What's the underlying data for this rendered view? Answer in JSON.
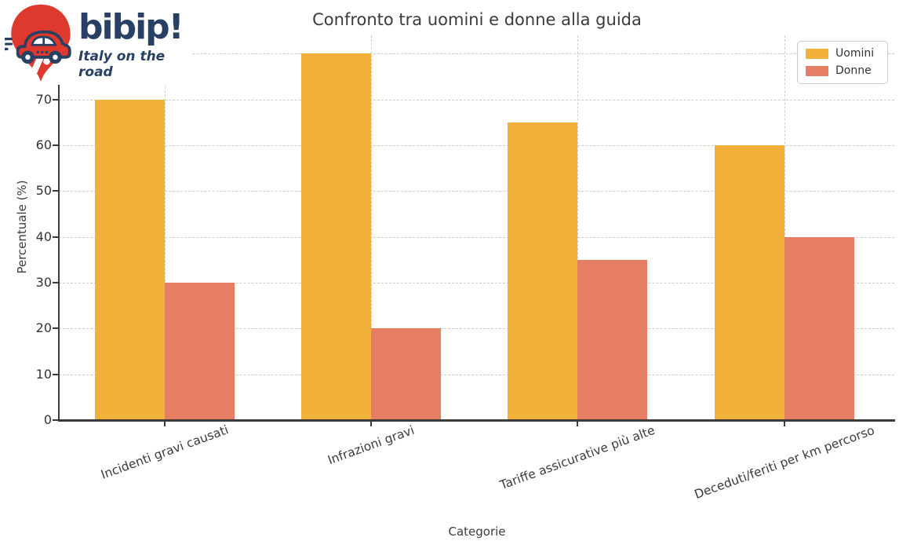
{
  "logo": {
    "brand": "bibip!",
    "tagline": "Italy on the road",
    "pin_color": "#dd392c",
    "navy_color": "#274063"
  },
  "chart_data": {
    "type": "bar",
    "title": "Confronto tra uomini e donne alla guida",
    "xlabel": "Categorie",
    "ylabel": "Percentuale (%)",
    "categories": [
      "Incidenti gravi causati",
      "Infrazioni gravi",
      "Tariffe assicurative più alte",
      "Deceduti/feriti per km percorso"
    ],
    "series": [
      {
        "name": "Uomini",
        "color": "#f2b13a",
        "values": [
          70,
          80,
          65,
          60
        ]
      },
      {
        "name": "Donne",
        "color": "#e57e62",
        "values": [
          30,
          20,
          35,
          40
        ]
      }
    ],
    "ylim": [
      0,
      84
    ],
    "yticks": [
      0,
      10,
      20,
      30,
      40,
      50,
      60,
      70
    ],
    "grid": {
      "style": "dashed",
      "color": "#cdcdcd",
      "horizontal_values": [
        10,
        20,
        30,
        40,
        50,
        60,
        70,
        80
      ],
      "vertical": "at each category center"
    },
    "legend_position": "upper right"
  }
}
